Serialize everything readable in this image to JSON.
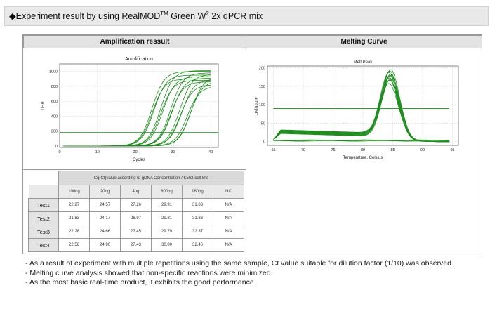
{
  "header": {
    "title_pre": "◆Experiment result by using RealMOD",
    "title_sup": "TM",
    "title_mid": " Green W",
    "title_sup2": "2",
    "title_post": " 2x qPCR mix"
  },
  "panels": {
    "left_title": "Amplification ressult",
    "right_title": "Melting Curve"
  },
  "amplification": {
    "chart_data": {
      "type": "line",
      "title": "Amplification",
      "xlabel": "Cycles",
      "ylabel": "RFU",
      "xlim": [
        0,
        42
      ],
      "ylim": [
        -20,
        1100
      ],
      "xticks": [
        "0",
        "10",
        "20",
        "30",
        "40"
      ],
      "yticks": [
        "0",
        "200",
        "400",
        "600",
        "800",
        "1000"
      ],
      "threshold": 180,
      "series_params": [
        {
          "ct": 22.3,
          "plateau": 900
        },
        {
          "ct": 22.0,
          "plateau": 1000
        },
        {
          "ct": 22.6,
          "plateau": 950
        },
        {
          "ct": 24.6,
          "plateau": 880
        },
        {
          "ct": 24.3,
          "plateau": 1010
        },
        {
          "ct": 25.0,
          "plateau": 930
        },
        {
          "ct": 27.3,
          "plateau": 860
        },
        {
          "ct": 27.0,
          "plateau": 980
        },
        {
          "ct": 27.5,
          "plateau": 910
        },
        {
          "ct": 29.9,
          "plateau": 820
        },
        {
          "ct": 29.4,
          "plateau": 960
        },
        {
          "ct": 30.1,
          "plateau": 890
        },
        {
          "ct": 31.8,
          "plateau": 800
        },
        {
          "ct": 32.4,
          "plateau": 870
        },
        {
          "ct": 32.5,
          "plateau": 930
        }
      ]
    }
  },
  "melting": {
    "chart_data": {
      "type": "line",
      "title": "Melt Peak",
      "xlabel": "Temperature, Celsius",
      "ylabel": "-d(RFU)/dT",
      "xlim": [
        64,
        96
      ],
      "ylim": [
        -10,
        205
      ],
      "xticks": [
        "65",
        "70",
        "75",
        "80",
        "85",
        "90",
        "95"
      ],
      "yticks": [
        "0",
        "50",
        "100",
        "150",
        "200"
      ],
      "threshold": 90,
      "peak_temp": 84.5,
      "peak_heights": [
        150,
        160,
        165,
        170,
        175,
        180,
        185,
        190,
        195,
        172,
        168,
        182
      ]
    }
  },
  "table": {
    "caption": "Cq(Ct)value according to gDNA Concentration / K562 cell line",
    "columns": [
      "100ng",
      "20ng",
      "4ng",
      "800pg",
      "160pg",
      "NC"
    ],
    "rows": [
      {
        "label": "Test1",
        "values": [
          "22.27",
          "24.57",
          "27.26",
          "29.91",
          "31.83",
          "N/A"
        ]
      },
      {
        "label": "Test2",
        "values": [
          "21.83",
          "24.17",
          "26.97",
          "29.31",
          "31.83",
          "N/A"
        ]
      },
      {
        "label": "Test3",
        "values": [
          "22.28",
          "24.66",
          "27.45",
          "29.79",
          "32.37",
          "N/A"
        ]
      },
      {
        "label": "Test4",
        "values": [
          "22.56",
          "24.90",
          "27.43",
          "30.00",
          "32.46",
          "N/A"
        ]
      }
    ]
  },
  "notes": [
    "- As a result of experiment with multiple repetitions using the same sample, Ct value suitable for dilution factor (1/10) was observed.",
    "- Melting curve analysis showed that non-specific reactions were minimized.",
    "- As the most basic real-time product, it exhibits the good performance"
  ],
  "colors": {
    "curve": "#1e8c1e",
    "threshold_amp": "#1e8c1e",
    "threshold_melt": "#2a9a2a",
    "grid": "#c8c8c8",
    "frame": "#666666"
  }
}
